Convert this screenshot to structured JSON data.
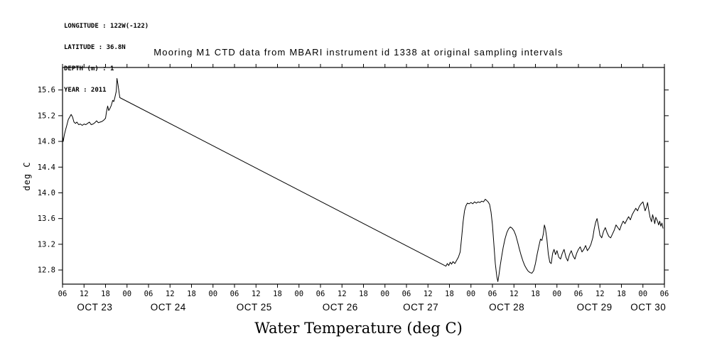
{
  "header": {
    "meta_lines": [
      "LONGITUDE : 122W(-122)",
      "LATITUDE : 36.8N",
      "DEPTH (m) : 1",
      "YEAR : 2011"
    ],
    "title": "Mooring M1 CTD data from MBARI instrument id 1338 at original sampling intervals"
  },
  "caption": "Water Temperature (deg C)",
  "chart_data": {
    "type": "line",
    "title": "Mooring M1 CTD data from MBARI instrument id 1338 at original sampling intervals",
    "ylabel": "deg C",
    "xlabel": "Water Temperature (deg C)",
    "x_unit": "hours since Oct 23 00:00, 2011",
    "xlim": [
      6,
      174
    ],
    "ylim": [
      12.58,
      15.95
    ],
    "y_ticks": [
      12.8,
      13.2,
      13.6,
      14.0,
      14.4,
      14.8,
      15.2,
      15.6
    ],
    "x_tick_interval_hours": 6,
    "x_tick_labels_cycle": [
      "06",
      "12",
      "18",
      "00"
    ],
    "grid": false,
    "legend": "none",
    "line_color": "#000000",
    "background_color": "#ffffff",
    "day_labels": [
      {
        "label": "OCT 23",
        "hour": 15
      },
      {
        "label": "OCT 24",
        "hour": 35.5
      },
      {
        "label": "OCT 25",
        "hour": 59.5
      },
      {
        "label": "OCT 26",
        "hour": 83.5
      },
      {
        "label": "OCT 27",
        "hour": 106
      },
      {
        "label": "OCT 28",
        "hour": 130
      },
      {
        "label": "OCT 29",
        "hour": 154.5
      },
      {
        "label": "OCT 30",
        "hour": 169.5
      }
    ],
    "series": [
      {
        "name": "water_temperature_degC",
        "note": "straight segment from hour 22 to 113 is an interpolated data gap",
        "points": [
          [
            6.0,
            14.88
          ],
          [
            6.2,
            14.8
          ],
          [
            6.5,
            14.9
          ],
          [
            6.8,
            14.97
          ],
          [
            7.2,
            15.05
          ],
          [
            7.6,
            15.14
          ],
          [
            8.0,
            15.18
          ],
          [
            8.4,
            15.22
          ],
          [
            8.8,
            15.18
          ],
          [
            9.2,
            15.1
          ],
          [
            9.6,
            15.08
          ],
          [
            10.0,
            15.1
          ],
          [
            10.5,
            15.06
          ],
          [
            11.0,
            15.07
          ],
          [
            11.5,
            15.05
          ],
          [
            12.0,
            15.07
          ],
          [
            12.5,
            15.06
          ],
          [
            13.0,
            15.08
          ],
          [
            13.5,
            15.1
          ],
          [
            14.0,
            15.06
          ],
          [
            14.5,
            15.07
          ],
          [
            15.0,
            15.09
          ],
          [
            15.5,
            15.12
          ],
          [
            16.0,
            15.09
          ],
          [
            16.5,
            15.1
          ],
          [
            17.0,
            15.11
          ],
          [
            17.5,
            15.13
          ],
          [
            18.0,
            15.16
          ],
          [
            18.3,
            15.27
          ],
          [
            18.6,
            15.35
          ],
          [
            18.9,
            15.28
          ],
          [
            19.2,
            15.31
          ],
          [
            19.6,
            15.36
          ],
          [
            20.0,
            15.44
          ],
          [
            20.3,
            15.42
          ],
          [
            20.6,
            15.48
          ],
          [
            21.0,
            15.58
          ],
          [
            21.2,
            15.78
          ],
          [
            21.5,
            15.68
          ],
          [
            21.8,
            15.55
          ],
          [
            22.0,
            15.48
          ],
          [
            113.0,
            12.86
          ],
          [
            113.4,
            12.9
          ],
          [
            113.8,
            12.87
          ],
          [
            114.2,
            12.92
          ],
          [
            114.6,
            12.89
          ],
          [
            115.0,
            12.93
          ],
          [
            115.5,
            12.9
          ],
          [
            116.0,
            12.95
          ],
          [
            116.5,
            13.0
          ],
          [
            117.0,
            13.08
          ],
          [
            117.4,
            13.3
          ],
          [
            117.8,
            13.55
          ],
          [
            118.2,
            13.72
          ],
          [
            118.6,
            13.8
          ],
          [
            119.0,
            13.84
          ],
          [
            119.5,
            13.83
          ],
          [
            120.0,
            13.85
          ],
          [
            120.5,
            13.83
          ],
          [
            121.0,
            13.86
          ],
          [
            121.5,
            13.84
          ],
          [
            122.0,
            13.86
          ],
          [
            122.5,
            13.85
          ],
          [
            123.0,
            13.87
          ],
          [
            123.5,
            13.86
          ],
          [
            124.0,
            13.9
          ],
          [
            124.4,
            13.88
          ],
          [
            124.8,
            13.86
          ],
          [
            125.2,
            13.82
          ],
          [
            125.6,
            13.7
          ],
          [
            126.0,
            13.5
          ],
          [
            126.4,
            13.2
          ],
          [
            126.8,
            12.9
          ],
          [
            127.2,
            12.7
          ],
          [
            127.5,
            12.62
          ],
          [
            127.8,
            12.72
          ],
          [
            128.2,
            12.88
          ],
          [
            128.6,
            13.02
          ],
          [
            129.0,
            13.15
          ],
          [
            129.5,
            13.28
          ],
          [
            130.0,
            13.38
          ],
          [
            130.5,
            13.44
          ],
          [
            131.0,
            13.47
          ],
          [
            131.5,
            13.45
          ],
          [
            132.0,
            13.41
          ],
          [
            132.5,
            13.34
          ],
          [
            133.0,
            13.24
          ],
          [
            133.5,
            13.13
          ],
          [
            134.0,
            13.03
          ],
          [
            134.5,
            12.94
          ],
          [
            135.0,
            12.87
          ],
          [
            135.5,
            12.82
          ],
          [
            136.0,
            12.78
          ],
          [
            136.5,
            12.76
          ],
          [
            137.0,
            12.75
          ],
          [
            137.5,
            12.79
          ],
          [
            138.0,
            12.9
          ],
          [
            138.5,
            13.05
          ],
          [
            139.0,
            13.18
          ],
          [
            139.4,
            13.28
          ],
          [
            139.8,
            13.26
          ],
          [
            140.2,
            13.36
          ],
          [
            140.5,
            13.5
          ],
          [
            140.8,
            13.44
          ],
          [
            141.2,
            13.28
          ],
          [
            141.6,
            13.05
          ],
          [
            142.0,
            12.92
          ],
          [
            142.4,
            12.9
          ],
          [
            142.8,
            13.06
          ],
          [
            143.2,
            13.12
          ],
          [
            143.6,
            13.04
          ],
          [
            144.0,
            13.1
          ],
          [
            144.5,
            13.0
          ],
          [
            145.0,
            12.97
          ],
          [
            145.5,
            13.06
          ],
          [
            146.0,
            13.12
          ],
          [
            146.5,
            13.0
          ],
          [
            147.0,
            12.94
          ],
          [
            147.5,
            13.04
          ],
          [
            148.0,
            13.1
          ],
          [
            148.5,
            13.02
          ],
          [
            149.0,
            12.97
          ],
          [
            149.5,
            13.06
          ],
          [
            150.0,
            13.12
          ],
          [
            150.5,
            13.16
          ],
          [
            151.0,
            13.08
          ],
          [
            151.5,
            13.12
          ],
          [
            152.0,
            13.18
          ],
          [
            152.5,
            13.1
          ],
          [
            153.0,
            13.14
          ],
          [
            153.5,
            13.2
          ],
          [
            154.0,
            13.3
          ],
          [
            154.4,
            13.44
          ],
          [
            154.8,
            13.54
          ],
          [
            155.2,
            13.6
          ],
          [
            155.6,
            13.48
          ],
          [
            156.0,
            13.34
          ],
          [
            156.5,
            13.3
          ],
          [
            157.0,
            13.4
          ],
          [
            157.5,
            13.46
          ],
          [
            158.0,
            13.38
          ],
          [
            158.5,
            13.32
          ],
          [
            159.0,
            13.3
          ],
          [
            159.5,
            13.36
          ],
          [
            160.0,
            13.42
          ],
          [
            160.5,
            13.5
          ],
          [
            161.0,
            13.46
          ],
          [
            161.5,
            13.42
          ],
          [
            162.0,
            13.5
          ],
          [
            162.5,
            13.56
          ],
          [
            163.0,
            13.52
          ],
          [
            163.5,
            13.58
          ],
          [
            164.0,
            13.63
          ],
          [
            164.5,
            13.58
          ],
          [
            165.0,
            13.66
          ],
          [
            165.5,
            13.71
          ],
          [
            166.0,
            13.76
          ],
          [
            166.5,
            13.72
          ],
          [
            167.0,
            13.79
          ],
          [
            167.5,
            13.83
          ],
          [
            168.0,
            13.86
          ],
          [
            168.3,
            13.79
          ],
          [
            168.6,
            13.72
          ],
          [
            169.0,
            13.78
          ],
          [
            169.3,
            13.85
          ],
          [
            169.6,
            13.74
          ],
          [
            170.0,
            13.62
          ],
          [
            170.4,
            13.55
          ],
          [
            170.7,
            13.66
          ],
          [
            171.0,
            13.6
          ],
          [
            171.3,
            13.52
          ],
          [
            171.6,
            13.62
          ],
          [
            172.0,
            13.57
          ],
          [
            172.4,
            13.5
          ],
          [
            172.7,
            13.56
          ],
          [
            173.0,
            13.48
          ],
          [
            173.3,
            13.53
          ],
          [
            173.6,
            13.45
          ]
        ]
      }
    ]
  }
}
